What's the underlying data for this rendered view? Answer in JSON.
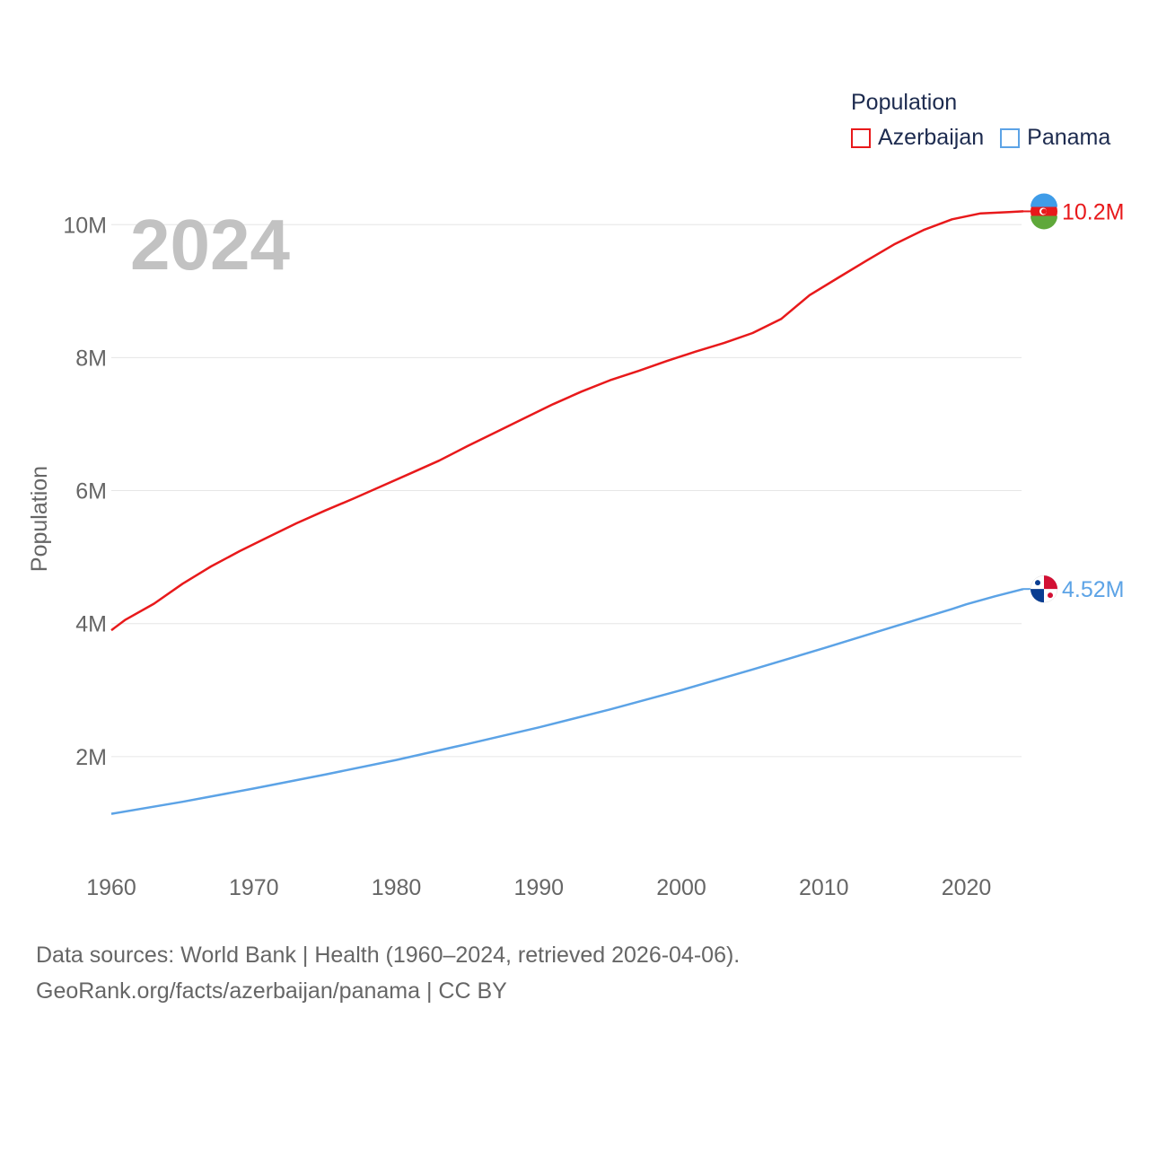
{
  "chart_data": {
    "type": "line",
    "title": "",
    "ylabel": "Population",
    "xlabel": "",
    "year_label": "2024",
    "xlim": [
      1960,
      2024
    ],
    "ylim": [
      0,
      10800000
    ],
    "x_ticks": [
      "1960",
      "1970",
      "1980",
      "1990",
      "2000",
      "2010",
      "2020"
    ],
    "y_ticks": [
      {
        "value": 2000000,
        "label": "2M"
      },
      {
        "value": 4000000,
        "label": "4M"
      },
      {
        "value": 6000000,
        "label": "6M"
      },
      {
        "value": 8000000,
        "label": "8M"
      },
      {
        "value": 10000000,
        "label": "10M"
      }
    ],
    "legend_title": "Population",
    "series": [
      {
        "name": "Azerbaijan",
        "color": "#e8191b",
        "end_label": "10.2M",
        "x": [
          1960,
          1961,
          1963,
          1965,
          1967,
          1969,
          1971,
          1973,
          1975,
          1977,
          1979,
          1981,
          1983,
          1985,
          1987,
          1989,
          1991,
          1993,
          1995,
          1997,
          1999,
          2001,
          2003,
          2005,
          2007,
          2009,
          2011,
          2013,
          2015,
          2017,
          2019,
          2021,
          2023,
          2024
        ],
        "values": [
          3900000,
          4060000,
          4300000,
          4600000,
          4860000,
          5090000,
          5300000,
          5510000,
          5700000,
          5880000,
          6070000,
          6260000,
          6450000,
          6670000,
          6880000,
          7090000,
          7300000,
          7490000,
          7660000,
          7800000,
          7950000,
          8090000,
          8220000,
          8370000,
          8580000,
          8940000,
          9200000,
          9460000,
          9710000,
          9920000,
          10080000,
          10170000,
          10190000,
          10200000
        ]
      },
      {
        "name": "Panama",
        "color": "#5ca3e6",
        "end_label": "4.52M",
        "x": [
          1960,
          1965,
          1970,
          1975,
          1980,
          1985,
          1990,
          1995,
          2000,
          2005,
          2010,
          2015,
          2019,
          2020,
          2022,
          2024
        ],
        "values": [
          1140000,
          1320000,
          1520000,
          1730000,
          1950000,
          2190000,
          2440000,
          2710000,
          3000000,
          3310000,
          3630000,
          3960000,
          4220000,
          4290000,
          4410000,
          4520000
        ]
      }
    ]
  },
  "footer": {
    "line1": "Data sources: World Bank | Health (1960–2024, retrieved 2026-04-06).",
    "line2": "GeoRank.org/facts/azerbaijan/panama | CC BY"
  }
}
